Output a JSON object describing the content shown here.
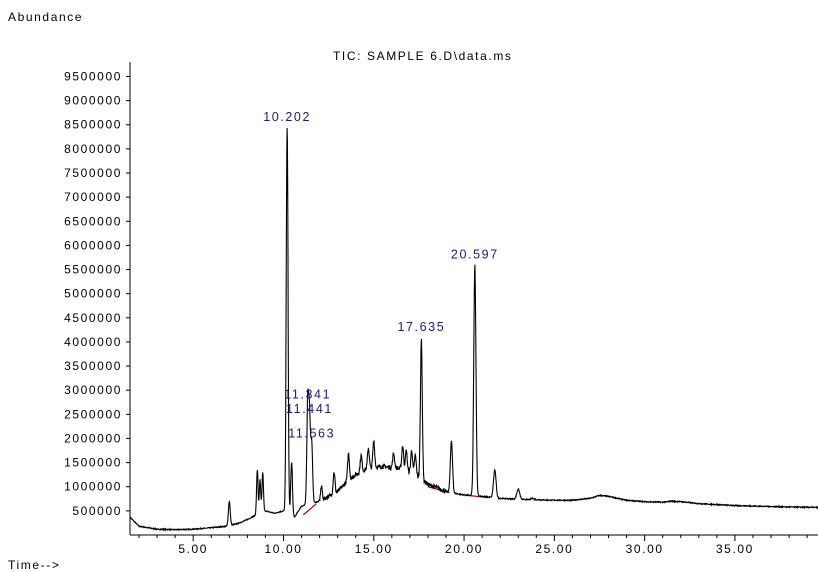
{
  "chart_data": {
    "type": "line",
    "title": "TIC: SAMPLE 6.D\\data.ms",
    "ylabel": "Abundance",
    "xlabel": "Time-->",
    "xlim": [
      1.5,
      39.6
    ],
    "ylim": [
      0,
      9800000
    ],
    "x_ticks": [
      5,
      10,
      15,
      20,
      25,
      30,
      35
    ],
    "x_tick_labels": [
      "5.00",
      "10.00",
      "15.00",
      "20.00",
      "25.00",
      "30.00",
      "35.00"
    ],
    "y_ticks": [
      500000,
      1000000,
      1500000,
      2000000,
      2500000,
      3000000,
      3500000,
      4000000,
      4500000,
      5000000,
      5500000,
      6000000,
      6500000,
      7000000,
      7500000,
      8000000,
      8500000,
      9000000,
      9500000
    ],
    "y_tick_labels": [
      "500000",
      "1000000",
      "1500000",
      "2000000",
      "2500000",
      "3000000",
      "3500000",
      "4000000",
      "4500000",
      "5000000",
      "5500000",
      "6000000",
      "6500000",
      "7000000",
      "7500000",
      "8000000",
      "8500000",
      "9000000",
      "9500000"
    ],
    "peak_labels": [
      {
        "rt": 10.202,
        "label": "10.202",
        "height": 8450000
      },
      {
        "rt": 11.341,
        "label": "11.341",
        "height": 2700000
      },
      {
        "rt": 11.441,
        "label": "11.441",
        "height": 2400000
      },
      {
        "rt": 11.563,
        "label": "11.563",
        "height": 1900000
      },
      {
        "rt": 17.635,
        "label": "17.635",
        "height": 4100000
      },
      {
        "rt": 20.597,
        "label": "20.597",
        "height": 5600000
      }
    ],
    "baseline": [
      [
        1.5,
        370000
      ],
      [
        2,
        180000
      ],
      [
        3,
        120000
      ],
      [
        4,
        110000
      ],
      [
        5,
        120000
      ],
      [
        6,
        150000
      ],
      [
        6.8,
        180000
      ],
      [
        7.5,
        240000
      ],
      [
        8.0,
        320000
      ],
      [
        8.5,
        420000
      ],
      [
        9.0,
        500000
      ],
      [
        9.5,
        450000
      ],
      [
        10.0,
        500000
      ],
      [
        10.5,
        300000
      ],
      [
        11.0,
        600000
      ],
      [
        11.5,
        650000
      ],
      [
        12.0,
        700000
      ],
      [
        12.5,
        800000
      ],
      [
        13.0,
        900000
      ],
      [
        13.5,
        1100000
      ],
      [
        14.0,
        1250000
      ],
      [
        14.5,
        1350000
      ],
      [
        15.0,
        1400000
      ],
      [
        15.5,
        1420000
      ],
      [
        16.0,
        1400000
      ],
      [
        16.5,
        1380000
      ],
      [
        17.0,
        1300000
      ],
      [
        17.5,
        1200000
      ],
      [
        18.0,
        1050000
      ],
      [
        18.5,
        980000
      ],
      [
        19.0,
        900000
      ],
      [
        19.5,
        860000
      ],
      [
        20.0,
        830000
      ],
      [
        21.0,
        800000
      ],
      [
        22.0,
        760000
      ],
      [
        23.0,
        740000
      ],
      [
        24.0,
        730000
      ],
      [
        25.0,
        720000
      ],
      [
        26.0,
        720000
      ],
      [
        27.0,
        760000
      ],
      [
        27.5,
        820000
      ],
      [
        28.0,
        800000
      ],
      [
        29.0,
        720000
      ],
      [
        30.0,
        690000
      ],
      [
        31.0,
        680000
      ],
      [
        31.5,
        700000
      ],
      [
        32.0,
        690000
      ],
      [
        33.0,
        650000
      ],
      [
        34.0,
        630000
      ],
      [
        35.0,
        610000
      ],
      [
        36.0,
        600000
      ],
      [
        37.0,
        590000
      ],
      [
        38.0,
        580000
      ],
      [
        39.0,
        575000
      ],
      [
        39.6,
        570000
      ]
    ],
    "spikes": [
      [
        7.0,
        700000,
        0.05
      ],
      [
        8.55,
        1350000,
        0.04
      ],
      [
        8.7,
        1150000,
        0.04
      ],
      [
        8.85,
        1300000,
        0.04
      ],
      [
        10.202,
        8450000,
        0.05
      ],
      [
        10.45,
        1500000,
        0.05
      ],
      [
        11.341,
        2700000,
        0.05
      ],
      [
        11.441,
        2400000,
        0.05
      ],
      [
        11.563,
        1900000,
        0.05
      ],
      [
        12.1,
        1000000,
        0.05
      ],
      [
        12.8,
        1300000,
        0.05
      ],
      [
        13.6,
        1700000,
        0.05
      ],
      [
        14.3,
        1650000,
        0.05
      ],
      [
        14.7,
        1800000,
        0.05
      ],
      [
        15.0,
        1950000,
        0.05
      ],
      [
        16.1,
        1700000,
        0.05
      ],
      [
        16.6,
        1850000,
        0.05
      ],
      [
        16.8,
        1750000,
        0.05
      ],
      [
        17.1,
        1750000,
        0.05
      ],
      [
        17.3,
        1650000,
        0.05
      ],
      [
        17.635,
        4100000,
        0.05
      ],
      [
        19.3,
        1950000,
        0.06
      ],
      [
        20.597,
        5600000,
        0.06
      ],
      [
        21.7,
        1350000,
        0.07
      ],
      [
        23.0,
        950000,
        0.08
      ],
      [
        23.8,
        760000,
        0.08
      ]
    ],
    "integration_baseline_color": "#b00000",
    "line_color": "#000000",
    "peak_label_color": "#1a1a80"
  }
}
